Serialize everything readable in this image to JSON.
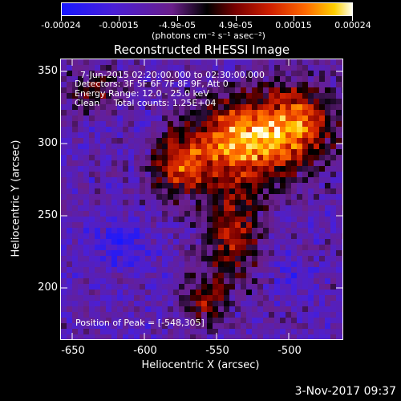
{
  "colorbar": {
    "tick_labels": [
      "-0.00024",
      "-0.00015",
      "-4.9e-05",
      "4.9e-05",
      "0.00015",
      "0.00024"
    ],
    "unit_label": "(photons cm⁻² s⁻¹ asec⁻²)"
  },
  "title": "Reconstructed RHESSI Image",
  "info": {
    "time_range": "7-Jun-2015 02:20:00.000 to 02:30:00.000",
    "detectors": "Detectors: 3F 5F 6F 7F 8F 9F, Att 0",
    "energy_range": "Energy Range: 12.0 - 25.0 keV",
    "clean": "Clean     Total counts: 1.25E+04",
    "peak": "Position of Peak = [-548,305]"
  },
  "footer": {
    "date": "3-Nov-2017 09:37"
  },
  "colors": {
    "low": "#1818ff",
    "mid_low": "#5a1fd0",
    "zero": "#000000",
    "mid_high": "#d02000",
    "high": "#ffd000",
    "max": "#fffff0"
  },
  "chart_data": {
    "type": "heatmap",
    "title": "Reconstructed RHESSI Image",
    "xlabel": "Heliocentric X (arcsec)",
    "ylabel": "Heliocentric Y (arcsec)",
    "xlim": [
      -668,
      -472
    ],
    "ylim": [
      165,
      360
    ],
    "x_ticks": [
      -650,
      -600,
      -550,
      -500
    ],
    "y_ticks": [
      200,
      250,
      300,
      350
    ],
    "x_tick_labels": [
      "-650",
      "-600",
      "-550",
      "-500"
    ],
    "y_tick_labels": [
      "200",
      "250",
      "300",
      "350"
    ],
    "value_range": [
      -0.00024,
      0.00024
    ],
    "peak": [
      -548,
      305
    ]
  }
}
